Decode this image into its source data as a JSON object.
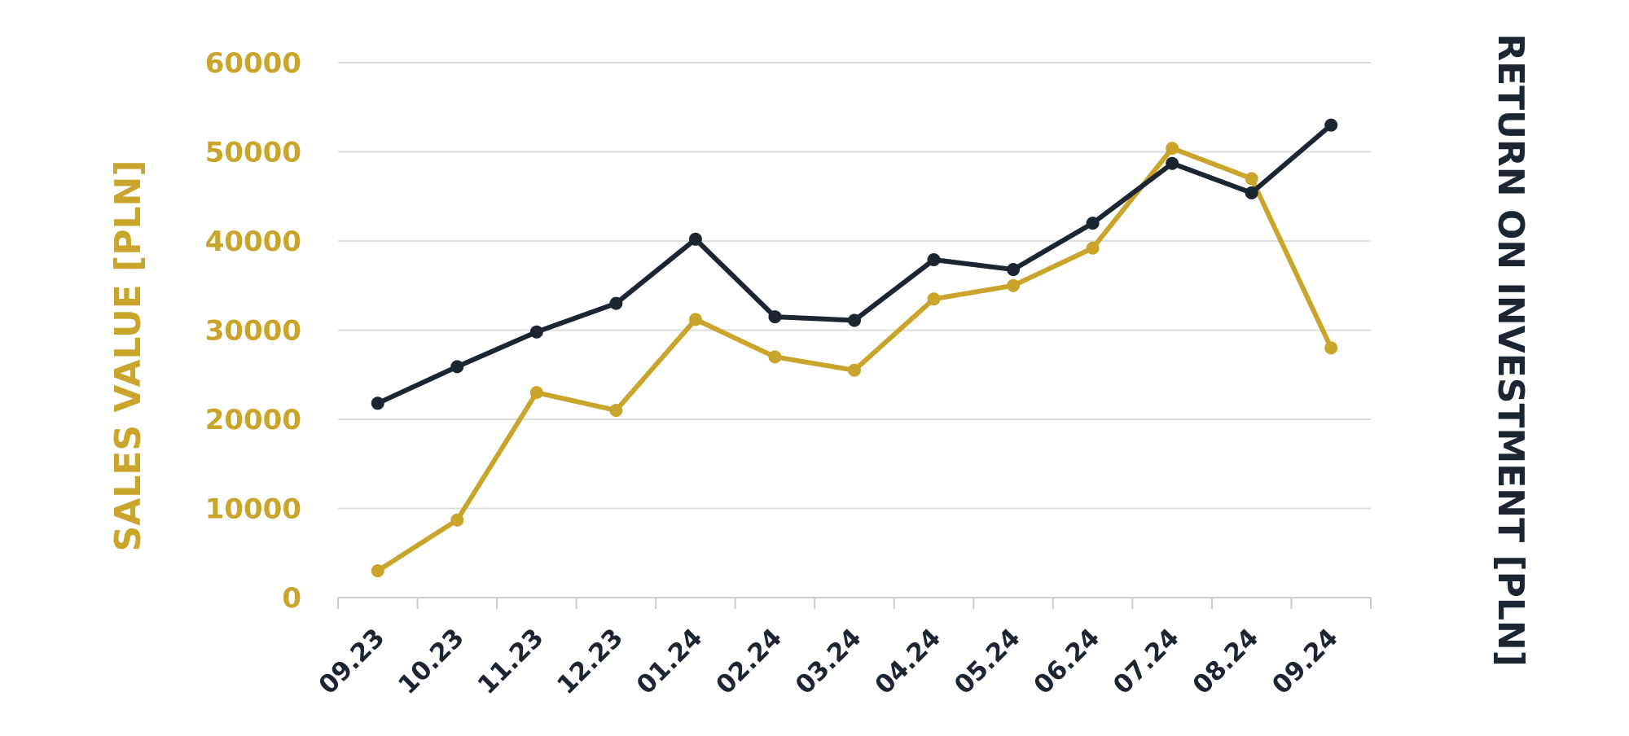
{
  "chart_data": {
    "type": "line",
    "categories": [
      "09.23",
      "10.23",
      "11.23",
      "12.23",
      "01.24",
      "02.24",
      "03.24",
      "04.24",
      "05.24",
      "06.24",
      "07.24",
      "08.24",
      "09.24"
    ],
    "series": [
      {
        "color": "#c9a52c",
        "axis": "left",
        "values": [
          3000,
          8700,
          23000,
          21000,
          31200,
          27000,
          25500,
          33500,
          35000,
          39200,
          50400,
          47000,
          28000
        ]
      },
      {
        "color": "#1c2633",
        "axis": "right",
        "values": [
          21800,
          25900,
          29800,
          33000,
          40200,
          31500,
          31100,
          37900,
          36800,
          42000,
          48700,
          45400,
          53000
        ]
      }
    ],
    "ylabel": "SALES VALUE [PLN]",
    "y2label": "RETURN ON INVESTMENT [PLN]",
    "ylim": [
      0,
      60000
    ],
    "yticks": [
      "0",
      "10000",
      "20000",
      "30000",
      "40000",
      "50000",
      "60000"
    ],
    "grid": true,
    "gold_color": "#c9a52c",
    "navy_color": "#1c2633",
    "grid_color": "#dddddd"
  }
}
